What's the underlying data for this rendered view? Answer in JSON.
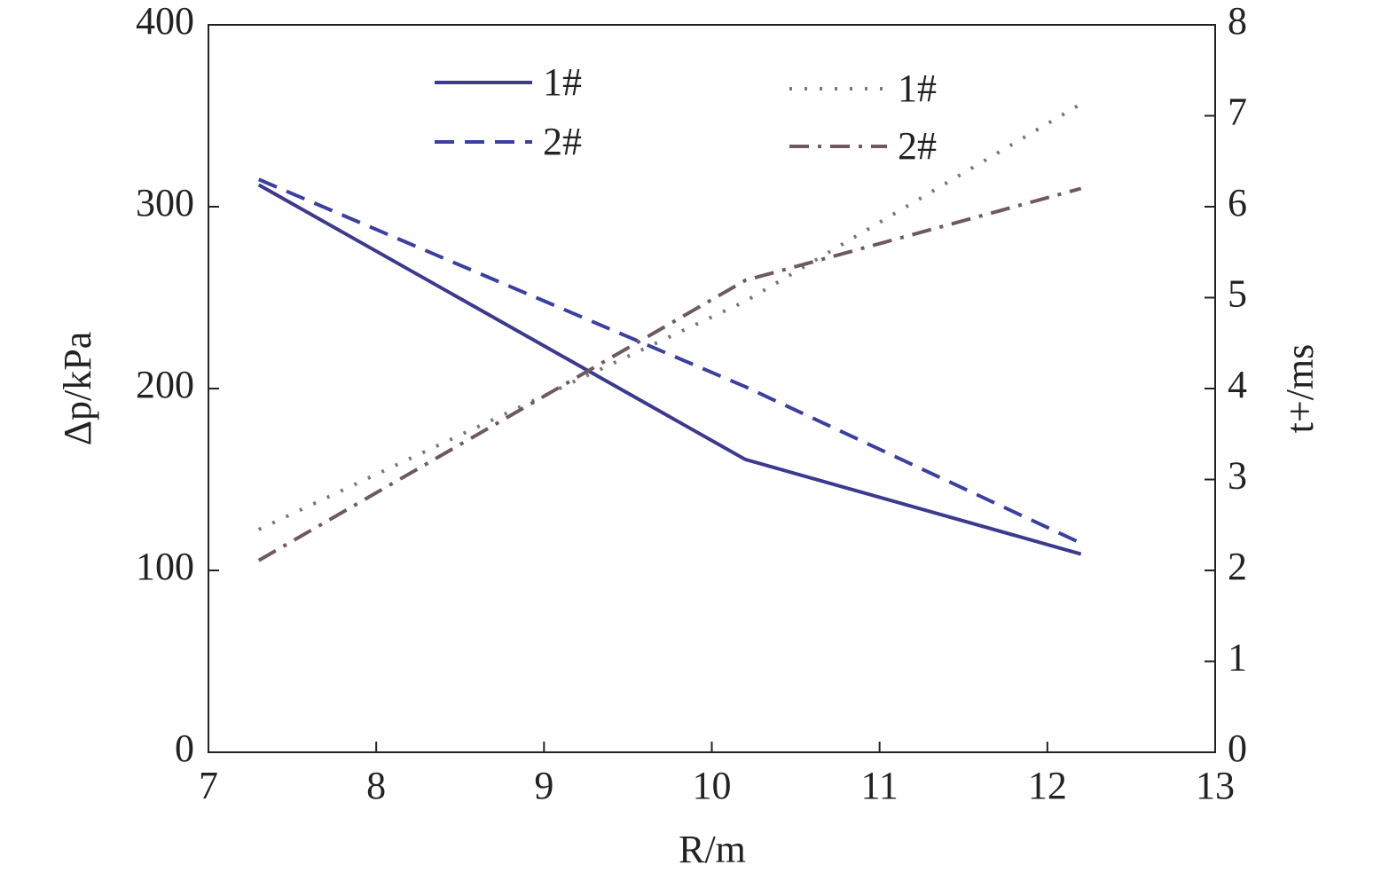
{
  "chart_data": {
    "type": "line",
    "x_label": "R/m",
    "y_label": "Δp/kPa",
    "y2_label": "t+/ms",
    "xlim": [
      7,
      13
    ],
    "xticks": [
      7,
      8,
      9,
      10,
      11,
      12,
      13
    ],
    "ylim": [
      0,
      400
    ],
    "yticks": [
      0,
      100,
      200,
      300,
      400
    ],
    "y2lim": [
      0,
      8
    ],
    "y2ticks": [
      0,
      1,
      2,
      3,
      4,
      5,
      6,
      7,
      8
    ],
    "series": [
      {
        "name": "1#",
        "color": "#3c3a8e",
        "style": "solid",
        "x": [
          7.3,
          10.2,
          12.2
        ],
        "values": [
          312,
          161,
          109
        ]
      },
      {
        "name": "2#",
        "color": "#3b40a0",
        "style": "dashed",
        "x": [
          7.3,
          10.2,
          12.2
        ],
        "values": [
          315,
          201,
          115
        ]
      },
      {
        "name": "1#",
        "color": "#777777",
        "style": "dotted",
        "axis": "y2",
        "x": [
          7.3,
          10.2,
          12.2
        ],
        "values": [
          2.45,
          4.96,
          7.13
        ]
      },
      {
        "name": "2#",
        "color": "#6e5862",
        "style": "dashdot",
        "axis": "y2",
        "x": [
          7.3,
          10.2,
          12.2
        ],
        "values": [
          2.11,
          5.19,
          6.2
        ]
      }
    ]
  }
}
